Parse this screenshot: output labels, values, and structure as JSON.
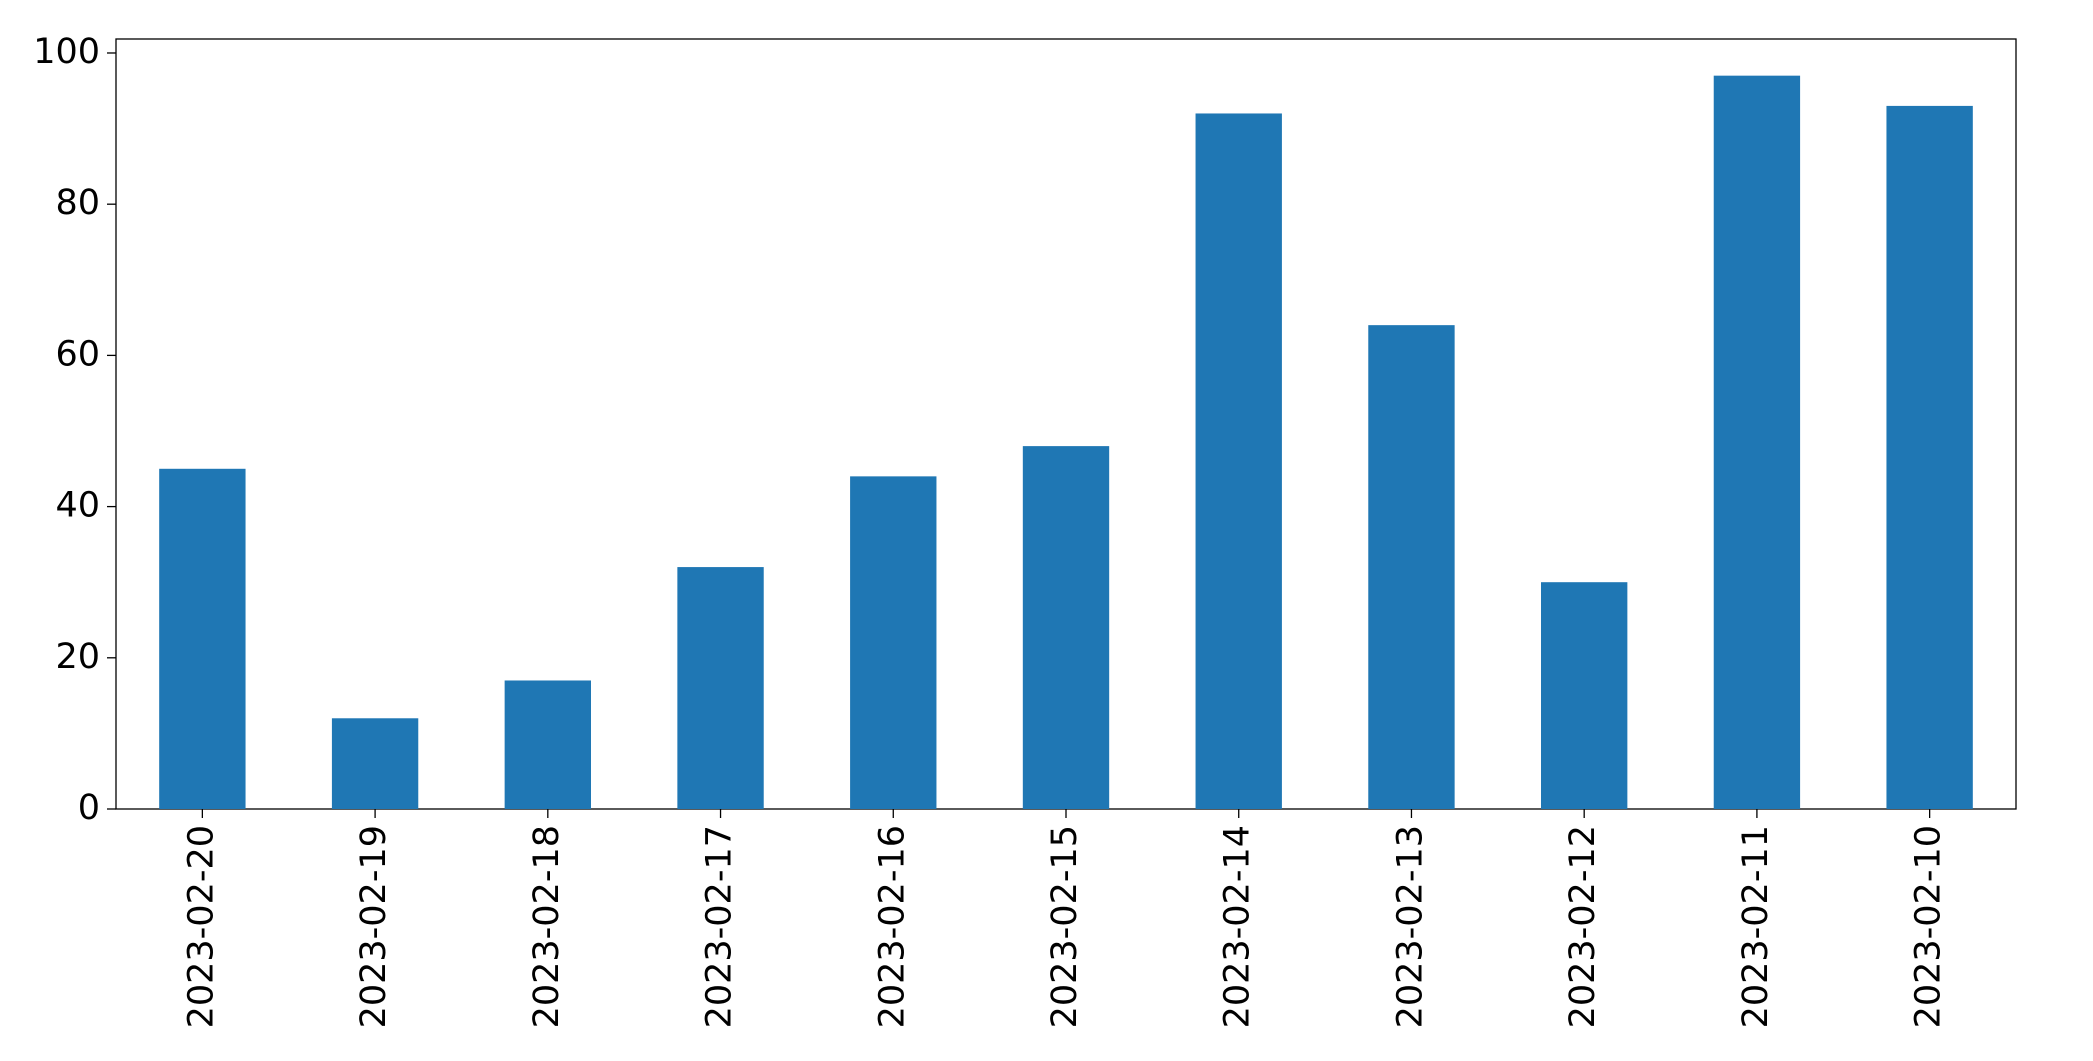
{
  "chart_data": {
    "type": "bar",
    "categories": [
      "2023-02-20",
      "2023-02-19",
      "2023-02-18",
      "2023-02-17",
      "2023-02-16",
      "2023-02-15",
      "2023-02-14",
      "2023-02-13",
      "2023-02-12",
      "2023-02-11",
      "2023-02-10"
    ],
    "values": [
      45,
      12,
      17,
      32,
      44,
      48,
      92,
      64,
      30,
      97,
      93
    ],
    "color": "#1f77b4",
    "ylim": [
      0,
      101.85
    ],
    "yticks": [
      0,
      20,
      40,
      60,
      80,
      100
    ],
    "grid": false
  }
}
